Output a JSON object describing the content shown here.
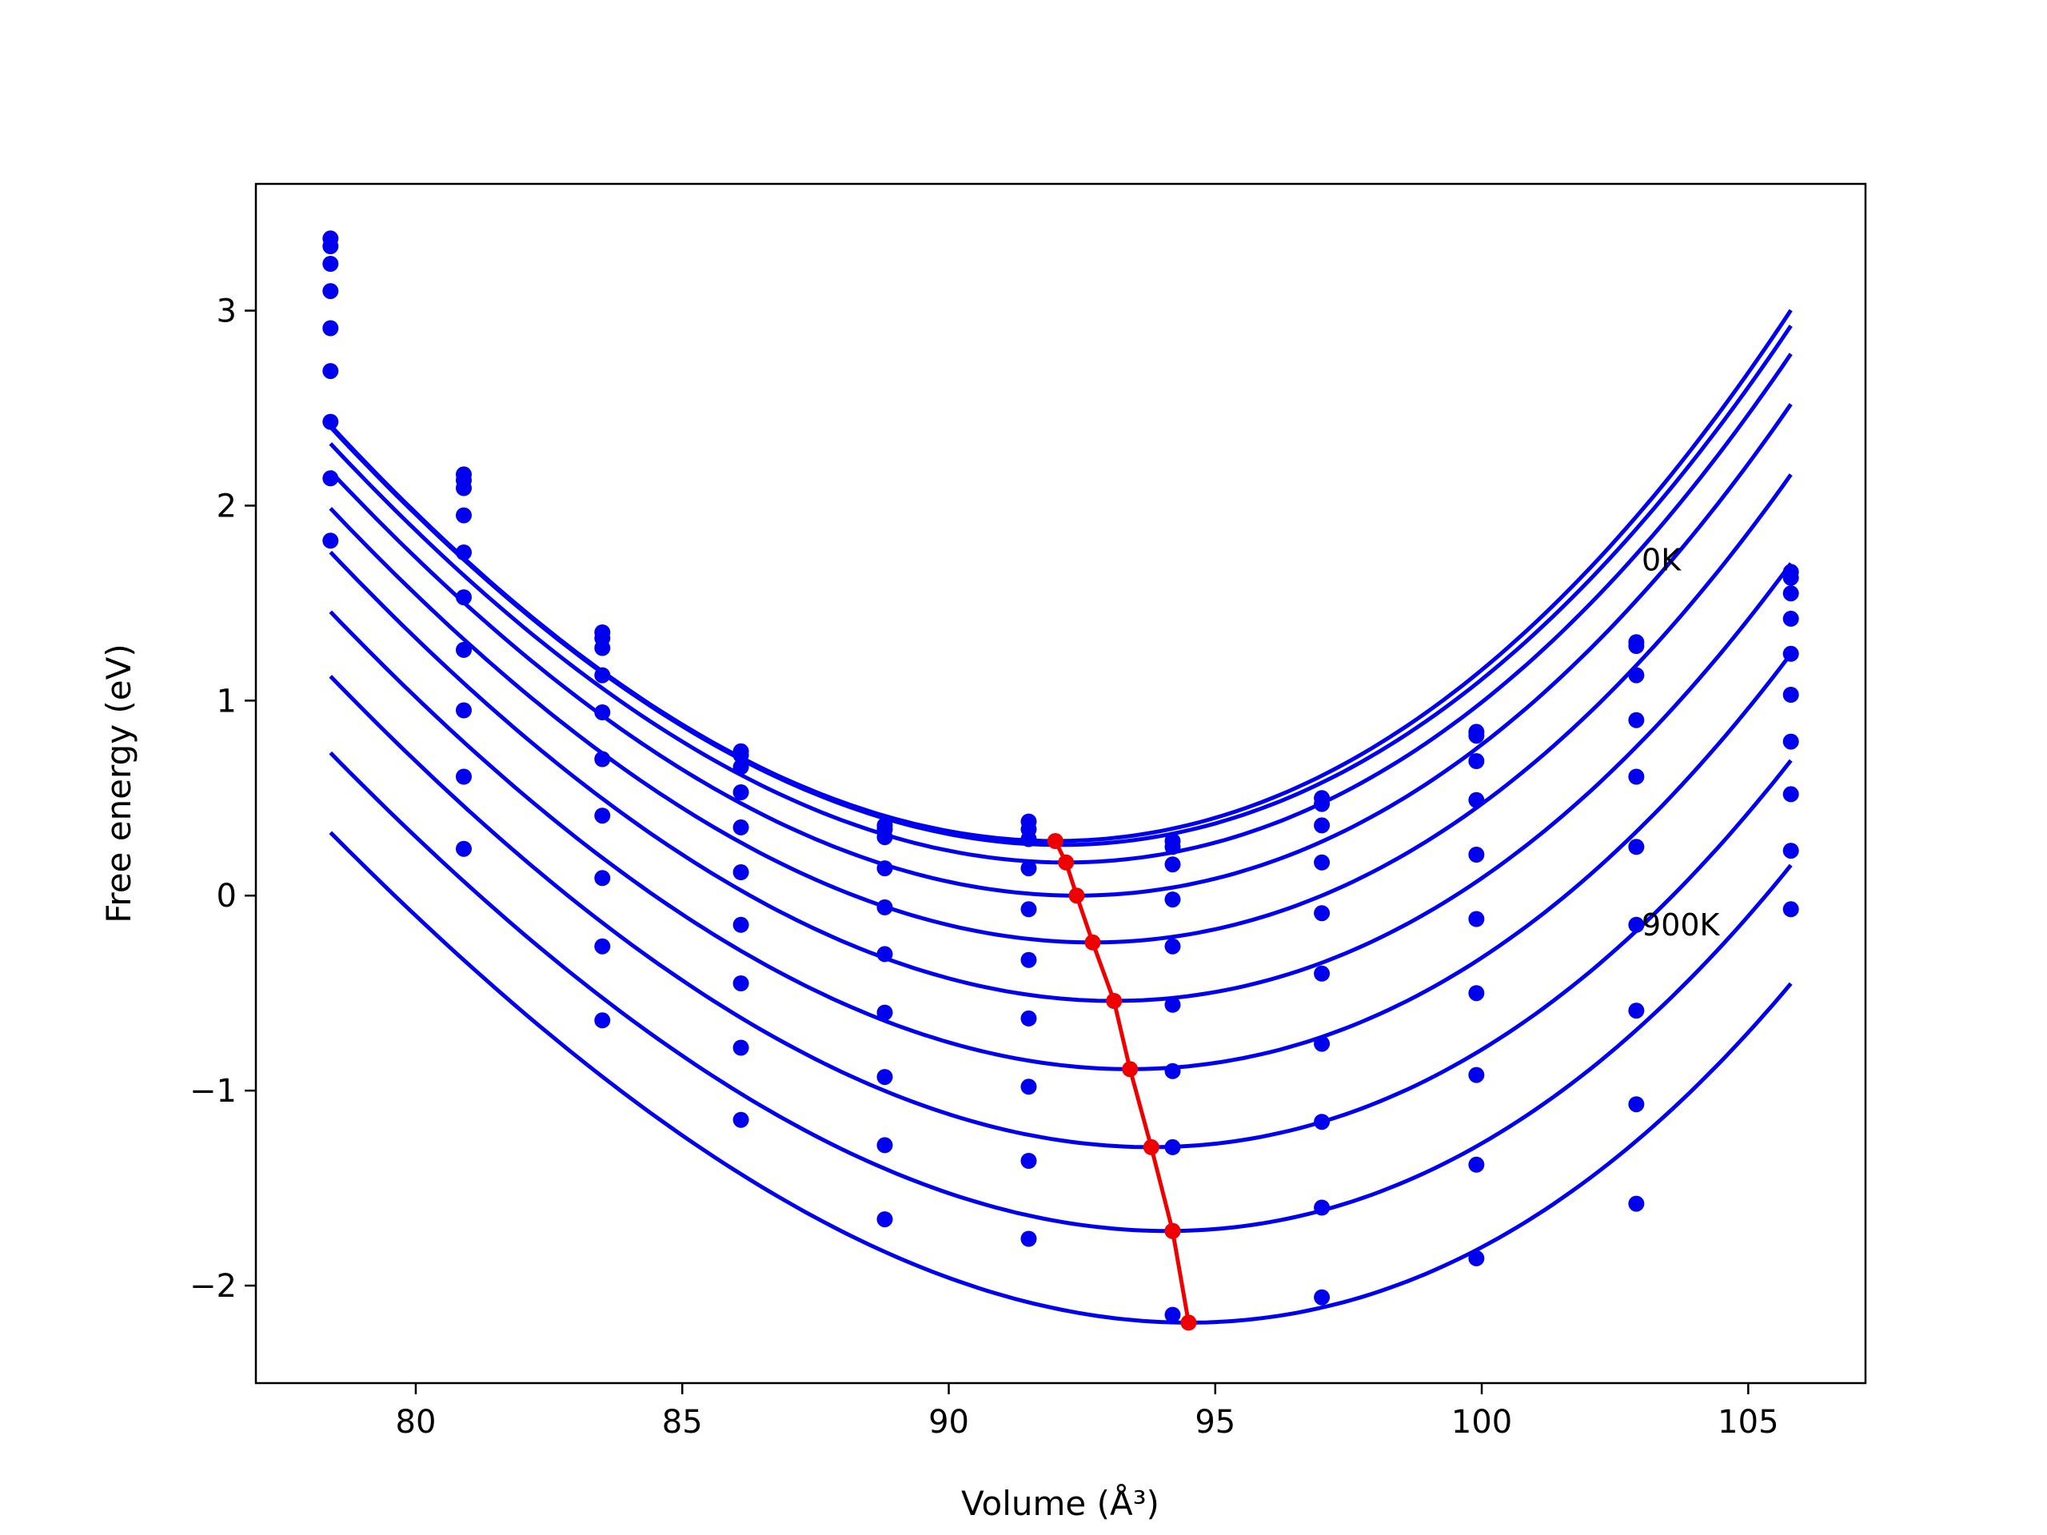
{
  "chart_data": {
    "type": "scatter",
    "title": "",
    "xlabel": "Volume (Å³)",
    "ylabel": "Free energy (eV)",
    "xlim": [
      77,
      107.2
    ],
    "ylim": [
      -2.5,
      3.65
    ],
    "xticks": [
      80,
      85,
      90,
      95,
      100,
      105
    ],
    "xtick_labels": [
      "80",
      "85",
      "90",
      "95",
      "100",
      "105"
    ],
    "yticks": [
      -2,
      -1,
      0,
      1,
      2,
      3
    ],
    "ytick_labels": [
      "−2",
      "−1",
      "0",
      "1",
      "2",
      "3"
    ],
    "grid": false,
    "legend": "none",
    "colors": {
      "series": "#0000ee",
      "minima": "#ee0000"
    },
    "annotations": [
      {
        "text": "0K",
        "x": 103.0,
        "y": 1.72
      },
      {
        "text": "900K",
        "x": 103.0,
        "y": -0.15
      }
    ],
    "x": [
      78.4,
      80.9,
      83.5,
      86.1,
      88.8,
      91.5,
      94.2,
      97.0,
      99.9,
      102.9,
      105.8
    ],
    "series": [
      {
        "values": [
          3.37,
          2.16,
          1.35,
          0.74,
          0.36,
          0.38,
          0.28,
          0.5,
          0.84,
          1.3,
          1.66
        ],
        "fit": {
          "v0": 92.0,
          "emin": 0.28,
          "a": 0.0129,
          "b": 0.000101
        }
      },
      {
        "values": [
          3.33,
          2.13,
          1.32,
          0.72,
          0.34,
          0.34,
          0.25,
          0.47,
          0.82,
          1.28,
          1.63
        ],
        "fit": {
          "v0": 92.1,
          "emin": 0.26,
          "a": 0.0128,
          "b": 0.000101
        }
      },
      {
        "values": [
          3.24,
          2.09,
          1.27,
          0.66,
          0.3,
          0.29,
          0.16,
          0.36,
          0.69,
          1.13,
          1.55
        ],
        "fit": {
          "v0": 92.2,
          "emin": 0.17,
          "a": 0.0127,
          "b": 0.000103
        }
      },
      {
        "values": [
          3.1,
          1.95,
          1.13,
          0.53,
          0.14,
          0.14,
          -0.02,
          0.17,
          0.49,
          0.9,
          1.42
        ],
        "fit": {
          "v0": 92.4,
          "emin": 0.0,
          "a": 0.0126,
          "b": 0.000107
        }
      },
      {
        "values": [
          2.91,
          1.76,
          0.94,
          0.35,
          -0.06,
          -0.07,
          -0.26,
          -0.09,
          0.21,
          0.61,
          1.24
        ],
        "fit": {
          "v0": 92.7,
          "emin": -0.24,
          "a": 0.0125,
          "b": 0.000113
        }
      },
      {
        "values": [
          2.69,
          1.53,
          0.7,
          0.12,
          -0.3,
          -0.33,
          -0.56,
          -0.4,
          -0.12,
          0.25,
          1.03
        ],
        "fit": {
          "v0": 93.1,
          "emin": -0.54,
          "a": 0.0124,
          "b": 0.000119
        }
      },
      {
        "values": [
          2.43,
          1.26,
          0.41,
          -0.15,
          -0.6,
          -0.63,
          -0.9,
          -0.76,
          -0.5,
          -0.15,
          0.79
        ],
        "fit": {
          "v0": 93.4,
          "emin": -0.89,
          "a": 0.0123,
          "b": 0.000125
        }
      },
      {
        "values": [
          2.14,
          0.95,
          0.09,
          -0.45,
          -0.93,
          -0.98,
          -1.29,
          -1.16,
          -0.92,
          -0.59,
          0.52
        ],
        "fit": {
          "v0": 93.8,
          "emin": -1.29,
          "a": 0.0122,
          "b": 0.000131
        }
      },
      {
        "values": [
          1.82,
          0.61,
          -0.26,
          -0.78,
          -1.28,
          -1.36,
          -1.72,
          -1.6,
          -1.38,
          -1.07,
          0.23
        ],
        "fit": {
          "v0": 94.1,
          "emin": -1.72,
          "a": 0.0121,
          "b": 0.000137
        }
      },
      {
        "values": [
          null,
          0.24,
          -0.64,
          -1.15,
          -1.66,
          -1.76,
          -2.15,
          -2.06,
          -1.86,
          -1.58,
          -0.07
        ],
        "fit": {
          "v0": 94.5,
          "emin": -2.19,
          "a": 0.012,
          "b": 0.000143
        }
      }
    ],
    "fit_x_range": [
      78.4,
      105.8
    ],
    "minima": {
      "x": [
        92.0,
        92.2,
        92.4,
        92.7,
        93.1,
        93.4,
        93.8,
        94.2,
        94.5
      ],
      "y": [
        0.28,
        0.17,
        0.0,
        -0.24,
        -0.54,
        -0.89,
        -1.29,
        -1.72,
        -2.19
      ]
    }
  }
}
